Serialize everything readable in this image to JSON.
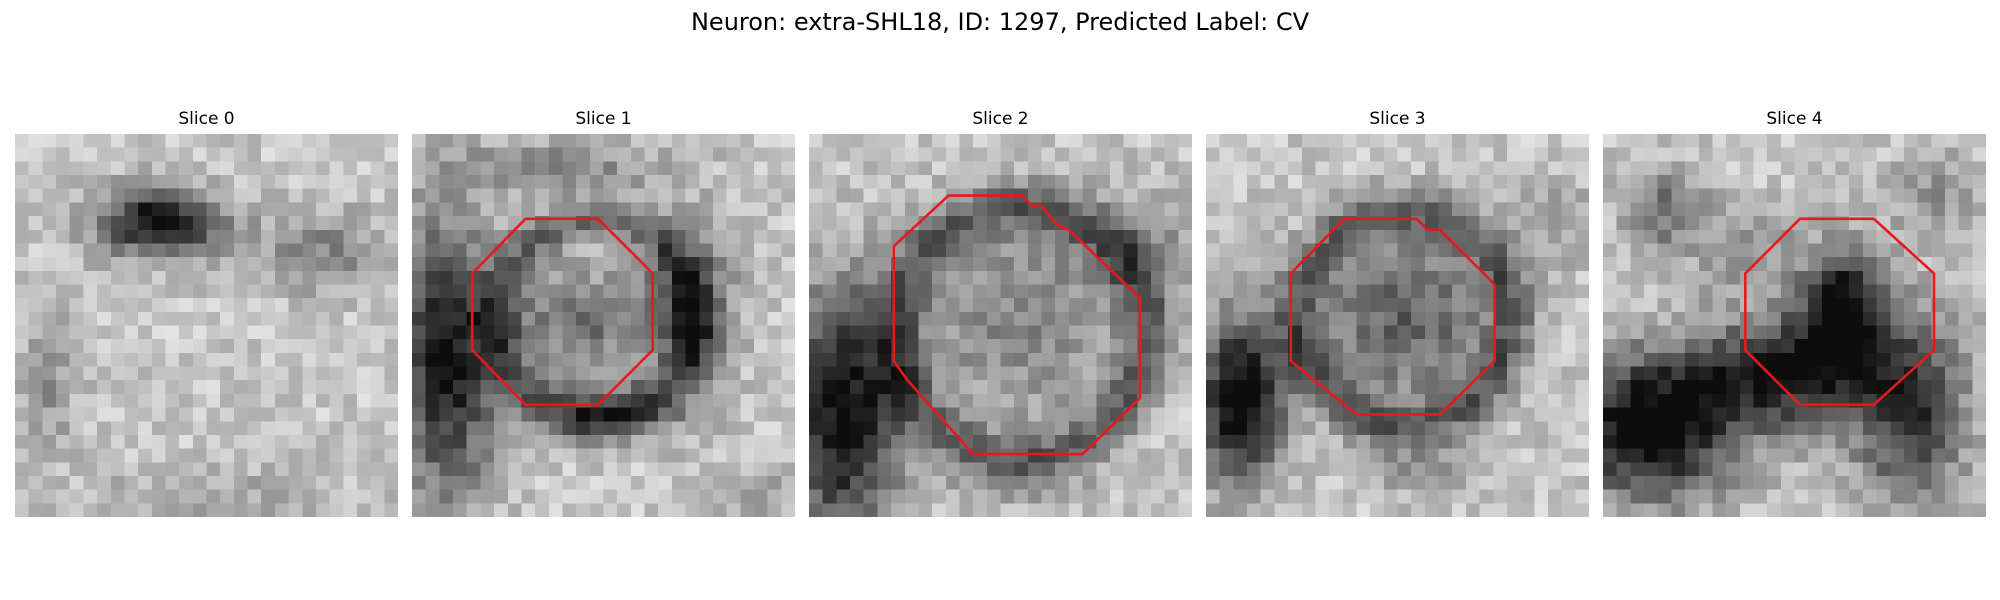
{
  "figure": {
    "title": "Neuron: extra-SHL18, ID: 1297, Predicted Label: CV",
    "colormap": "grayscale",
    "outline_color": "#e8191b"
  },
  "panels": [
    {
      "title": "Slice 0",
      "has_outline": false
    },
    {
      "title": "Slice 1",
      "has_outline": true
    },
    {
      "title": "Slice 2",
      "has_outline": true
    },
    {
      "title": "Slice 3",
      "has_outline": true
    },
    {
      "title": "Slice 4",
      "has_outline": true
    }
  ]
}
